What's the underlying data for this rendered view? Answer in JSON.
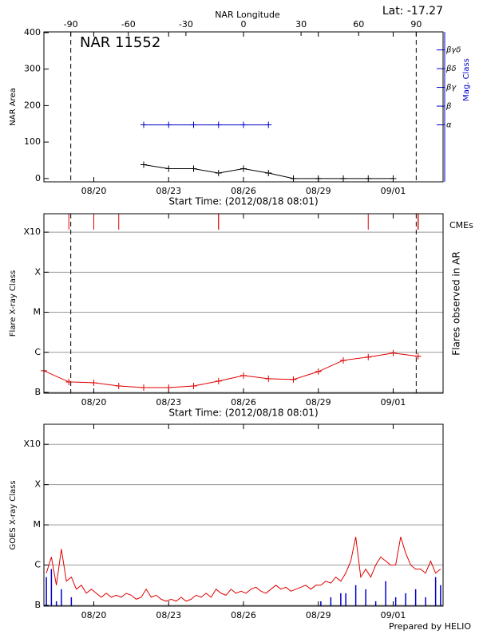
{
  "lat": "Lat: -17.27",
  "footer": "Prepared by HELIO",
  "chart_data": [
    {
      "type": "line",
      "title": "NAR 11552",
      "x2label": "NAR Longitude",
      "xlabel": "Start Time: (2012/08/18 08:01)",
      "ylabel": "NAR Area",
      "y2label": "Mag. Class",
      "xlim": [
        "08/18",
        "09/03"
      ],
      "xticks": [
        "08/20",
        "08/23",
        "08/26",
        "08/29",
        "09/01"
      ],
      "x2lim": [
        -104,
        104
      ],
      "x2ticks": [
        -90,
        -60,
        -30,
        0,
        30,
        60,
        90
      ],
      "ylim": [
        -9,
        402
      ],
      "yticks": [
        0,
        100,
        200,
        300,
        400
      ],
      "y2lim": [
        -2.04,
        5.96
      ],
      "y2ticks": [
        {
          "value": 1,
          "label": "α"
        },
        {
          "value": 2,
          "label": "β"
        },
        {
          "value": 3,
          "label": "βγ"
        },
        {
          "value": 4,
          "label": "βδ"
        },
        {
          "value": 5,
          "label": "βγδ"
        }
      ],
      "y2color": "#0000cc",
      "grid": false,
      "limb_lines": true,
      "series": [
        {
          "name": "NAR Area",
          "color": "#000000",
          "marker": "plus",
          "x": [
            "08/22",
            "08/23",
            "08/24",
            "08/25",
            "08/26",
            "08/27",
            "08/28",
            "08/29",
            "08/30",
            "08/31",
            "09/01"
          ],
          "values": [
            38,
            27,
            27,
            15,
            27,
            15,
            0,
            0,
            0,
            0,
            0
          ]
        },
        {
          "name": "Mag. Class",
          "color": "#0000cc",
          "marker": "plus",
          "axis": "y2",
          "x": [
            "08/22",
            "08/23",
            "08/24",
            "08/25",
            "08/26",
            "08/27"
          ],
          "values": [
            1,
            1,
            1,
            1,
            1,
            1
          ]
        }
      ]
    },
    {
      "type": "line",
      "xlabel": "Start Time: (2012/08/18 08:01)",
      "ylabel": "Flare X-ray Class",
      "y2label": "Flares observed in AR",
      "xlim": [
        "08/18",
        "09/03"
      ],
      "xticks": [
        "08/20",
        "08/23",
        "08/26",
        "08/29",
        "09/01"
      ],
      "ylim": [
        -7.02,
        -2.54
      ],
      "yticks": [
        {
          "value": -7,
          "label": "B"
        },
        {
          "value": -6,
          "label": "C"
        },
        {
          "value": -5,
          "label": "M"
        },
        {
          "value": -4,
          "label": "X"
        },
        {
          "value": -3,
          "label": "X10"
        }
      ],
      "grid": true,
      "limb_lines": true,
      "cmes": {
        "label": "CMEs",
        "color": "#e00000",
        "x": [
          "08/18",
          "08/19",
          "08/20",
          "08/20",
          "08/21",
          "08/25",
          "08/25",
          "08/31",
          "09/02",
          "09/02",
          "09/02"
        ]
      },
      "series": [
        {
          "name": "Flares",
          "color": "#e00000",
          "marker": "plus",
          "x": [
            "08/18",
            "08/19",
            "08/20",
            "08/21",
            "08/22",
            "08/23",
            "08/24",
            "08/25",
            "08/26",
            "08/27",
            "08/28",
            "08/29",
            "08/30",
            "08/31",
            "09/01",
            "09/02"
          ],
          "values": [
            -6.46,
            -6.74,
            -6.76,
            -6.84,
            -6.88,
            -6.88,
            -6.84,
            -6.72,
            -6.58,
            -6.66,
            -6.68,
            -6.48,
            -6.2,
            -6.12,
            -6.02,
            -6.1
          ]
        }
      ]
    },
    {
      "type": "line",
      "ylabel": "GOES X-ray Class",
      "xlim": [
        "08/18",
        "09/03"
      ],
      "xticks": [
        "08/20",
        "08/23",
        "08/26",
        "08/29",
        "09/01"
      ],
      "ylim": [
        -7.02,
        -2.5
      ],
      "yticks": [
        {
          "value": -7,
          "label": "B"
        },
        {
          "value": -6,
          "label": "C"
        },
        {
          "value": -5,
          "label": "M"
        },
        {
          "value": -4,
          "label": "X"
        },
        {
          "value": -3,
          "label": "X10"
        }
      ],
      "grid": true,
      "limb_lines": false,
      "series": [
        {
          "name": "GOES long",
          "color": "#e00000",
          "values": [
            -6.2,
            -5.8,
            -6.5,
            -5.6,
            -6.4,
            -6.3,
            -6.6,
            -6.5,
            -6.7,
            -6.6,
            -6.7,
            -6.8,
            -6.7,
            -6.8,
            -6.75,
            -6.8,
            -6.7,
            -6.75,
            -6.85,
            -6.8,
            -6.6,
            -6.8,
            -6.75,
            -6.85,
            -6.9,
            -6.85,
            -6.9,
            -6.8,
            -6.9,
            -6.85,
            -6.75,
            -6.8,
            -6.7,
            -6.8,
            -6.6,
            -6.7,
            -6.75,
            -6.6,
            -6.7,
            -6.65,
            -6.7,
            -6.6,
            -6.55,
            -6.65,
            -6.7,
            -6.6,
            -6.5,
            -6.6,
            -6.55,
            -6.65,
            -6.6,
            -6.55,
            -6.5,
            -6.6,
            -6.5,
            -6.5,
            -6.4,
            -6.45,
            -6.3,
            -6.4,
            -6.2,
            -5.9,
            -5.3,
            -6.3,
            -6.1,
            -6.3,
            -6.0,
            -5.8,
            -5.9,
            -6.0,
            -6.0,
            -5.3,
            -5.7,
            -6.0,
            -6.1,
            -6.1,
            -6.2,
            -5.9,
            -6.2,
            -6.1
          ]
        },
        {
          "name": "GOES short",
          "color": "#0000cc",
          "style": "bars",
          "values": [
            -6.3,
            -6.1,
            -6.9,
            -6.6,
            null,
            -6.8,
            null,
            null,
            null,
            null,
            null,
            null,
            null,
            null,
            null,
            null,
            null,
            null,
            null,
            null,
            null,
            null,
            null,
            null,
            null,
            null,
            null,
            null,
            null,
            null,
            null,
            null,
            null,
            null,
            null,
            null,
            null,
            null,
            null,
            null,
            null,
            null,
            null,
            null,
            null,
            null,
            null,
            null,
            null,
            null,
            null,
            null,
            null,
            null,
            null,
            -6.9,
            null,
            -6.8,
            null,
            -6.7,
            -6.7,
            null,
            -6.5,
            null,
            -6.6,
            null,
            -6.9,
            null,
            -6.4,
            null,
            -6.8,
            null,
            -6.7,
            null,
            -6.6,
            null,
            -6.8,
            null,
            -6.3,
            -6.5
          ]
        }
      ]
    }
  ]
}
